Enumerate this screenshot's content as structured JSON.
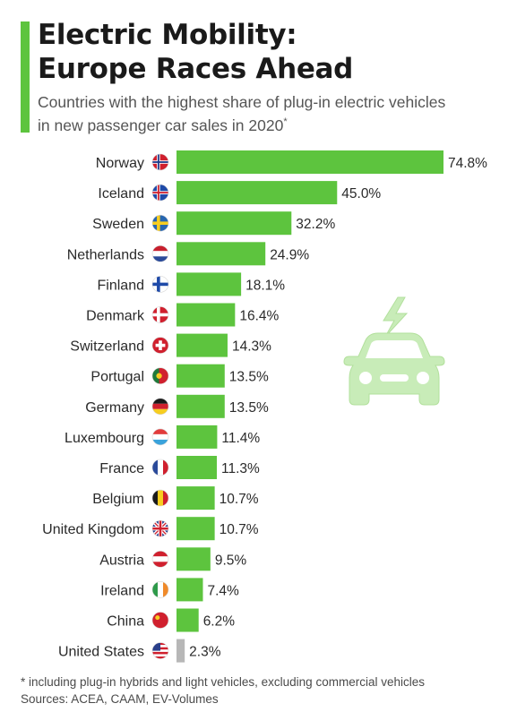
{
  "header": {
    "title_line1": "Electric Mobility:",
    "title_line2": "Europe Races Ahead",
    "subtitle_line1": "Countries with the highest share of plug-in electric vehicles",
    "subtitle_line2": "in new passenger car sales in 2020",
    "subtitle_mark": "*"
  },
  "footer": {
    "note": "* including plug-in hybrids and light vehicles, excluding commercial vehicles",
    "sources": "Sources: ACEA, CAAM, EV-Volumes"
  },
  "colors": {
    "bar": "#5dc43e",
    "bar_highlight": "#b7b7b7",
    "accent": "#5dc43e",
    "illustration": "#c8ecb8"
  },
  "icons": [
    "car-icon",
    "lightning-bolt-icon"
  ],
  "chart_data": {
    "type": "bar",
    "orientation": "horizontal",
    "unit": "%",
    "xlim": [
      0,
      74.8
    ],
    "grid": false,
    "legend": "none",
    "categories": [
      "Norway",
      "Iceland",
      "Sweden",
      "Netherlands",
      "Finland",
      "Denmark",
      "Switzerland",
      "Portugal",
      "Germany",
      "Luxembourg",
      "France",
      "Belgium",
      "United Kingdom",
      "Austria",
      "Ireland",
      "China",
      "United States"
    ],
    "values": [
      74.8,
      45.0,
      32.2,
      24.9,
      18.1,
      16.4,
      14.3,
      13.5,
      13.5,
      11.4,
      11.3,
      10.7,
      10.7,
      9.5,
      7.4,
      6.2,
      2.3
    ],
    "value_labels": [
      "74.8%",
      "45.0%",
      "32.2%",
      "24.9%",
      "18.1%",
      "16.4%",
      "14.3%",
      "13.5%",
      "13.5%",
      "11.4%",
      "11.3%",
      "10.7%",
      "10.7%",
      "9.5%",
      "7.4%",
      "6.2%",
      "2.3%"
    ],
    "highlight": [
      "United States"
    ],
    "flags": [
      "norway-flag-icon",
      "iceland-flag-icon",
      "sweden-flag-icon",
      "netherlands-flag-icon",
      "finland-flag-icon",
      "denmark-flag-icon",
      "switzerland-flag-icon",
      "portugal-flag-icon",
      "germany-flag-icon",
      "luxembourg-flag-icon",
      "france-flag-icon",
      "belgium-flag-icon",
      "united-kingdom-flag-icon",
      "austria-flag-icon",
      "ireland-flag-icon",
      "china-flag-icon",
      "united-states-flag-icon"
    ]
  }
}
